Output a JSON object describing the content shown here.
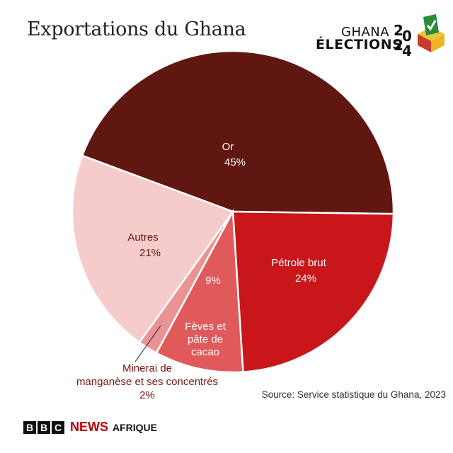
{
  "chart_data": {
    "type": "pie",
    "title": "Exportations du Ghana",
    "slices": [
      {
        "name": "Or",
        "value": 45,
        "label": "45%",
        "color": "#611711",
        "text_color": "#ffffff",
        "lines": [
          "Or"
        ]
      },
      {
        "name": "Pétrole brut",
        "value": 24,
        "label": "24%",
        "color": "#c8161b",
        "text_color": "#ffffff",
        "lines": [
          "Pétrole brut"
        ]
      },
      {
        "name": "Fèves et pâte de cacao",
        "value": 9,
        "label": "9%",
        "color": "#e05a5c",
        "text_color": "#ffffff",
        "lines": [
          "Fèves et",
          "pâte de",
          "cacao"
        ]
      },
      {
        "name": "Minerai de manganèse et ses concentrés",
        "value": 2,
        "label": "2%",
        "color": "#e89394",
        "text_color": "#7a1410",
        "lines": [
          "Minerai de",
          "manganèse et ses concentrés"
        ]
      },
      {
        "name": "Autres",
        "value": 21,
        "label": "21%",
        "color": "#f5cccb",
        "text_color": "#5c1712",
        "lines": [
          "Autres"
        ]
      }
    ]
  },
  "source": "Source: Service statistique du Ghana, 2023",
  "logo": {
    "line1": "GHANA",
    "line2": "ÉLECTIONS",
    "year": [
      "2",
      "0",
      "2",
      "4"
    ]
  },
  "footer": {
    "bbc_letters": [
      "B",
      "B",
      "C"
    ],
    "news": "NEWS",
    "section": "AFRIQUE"
  }
}
